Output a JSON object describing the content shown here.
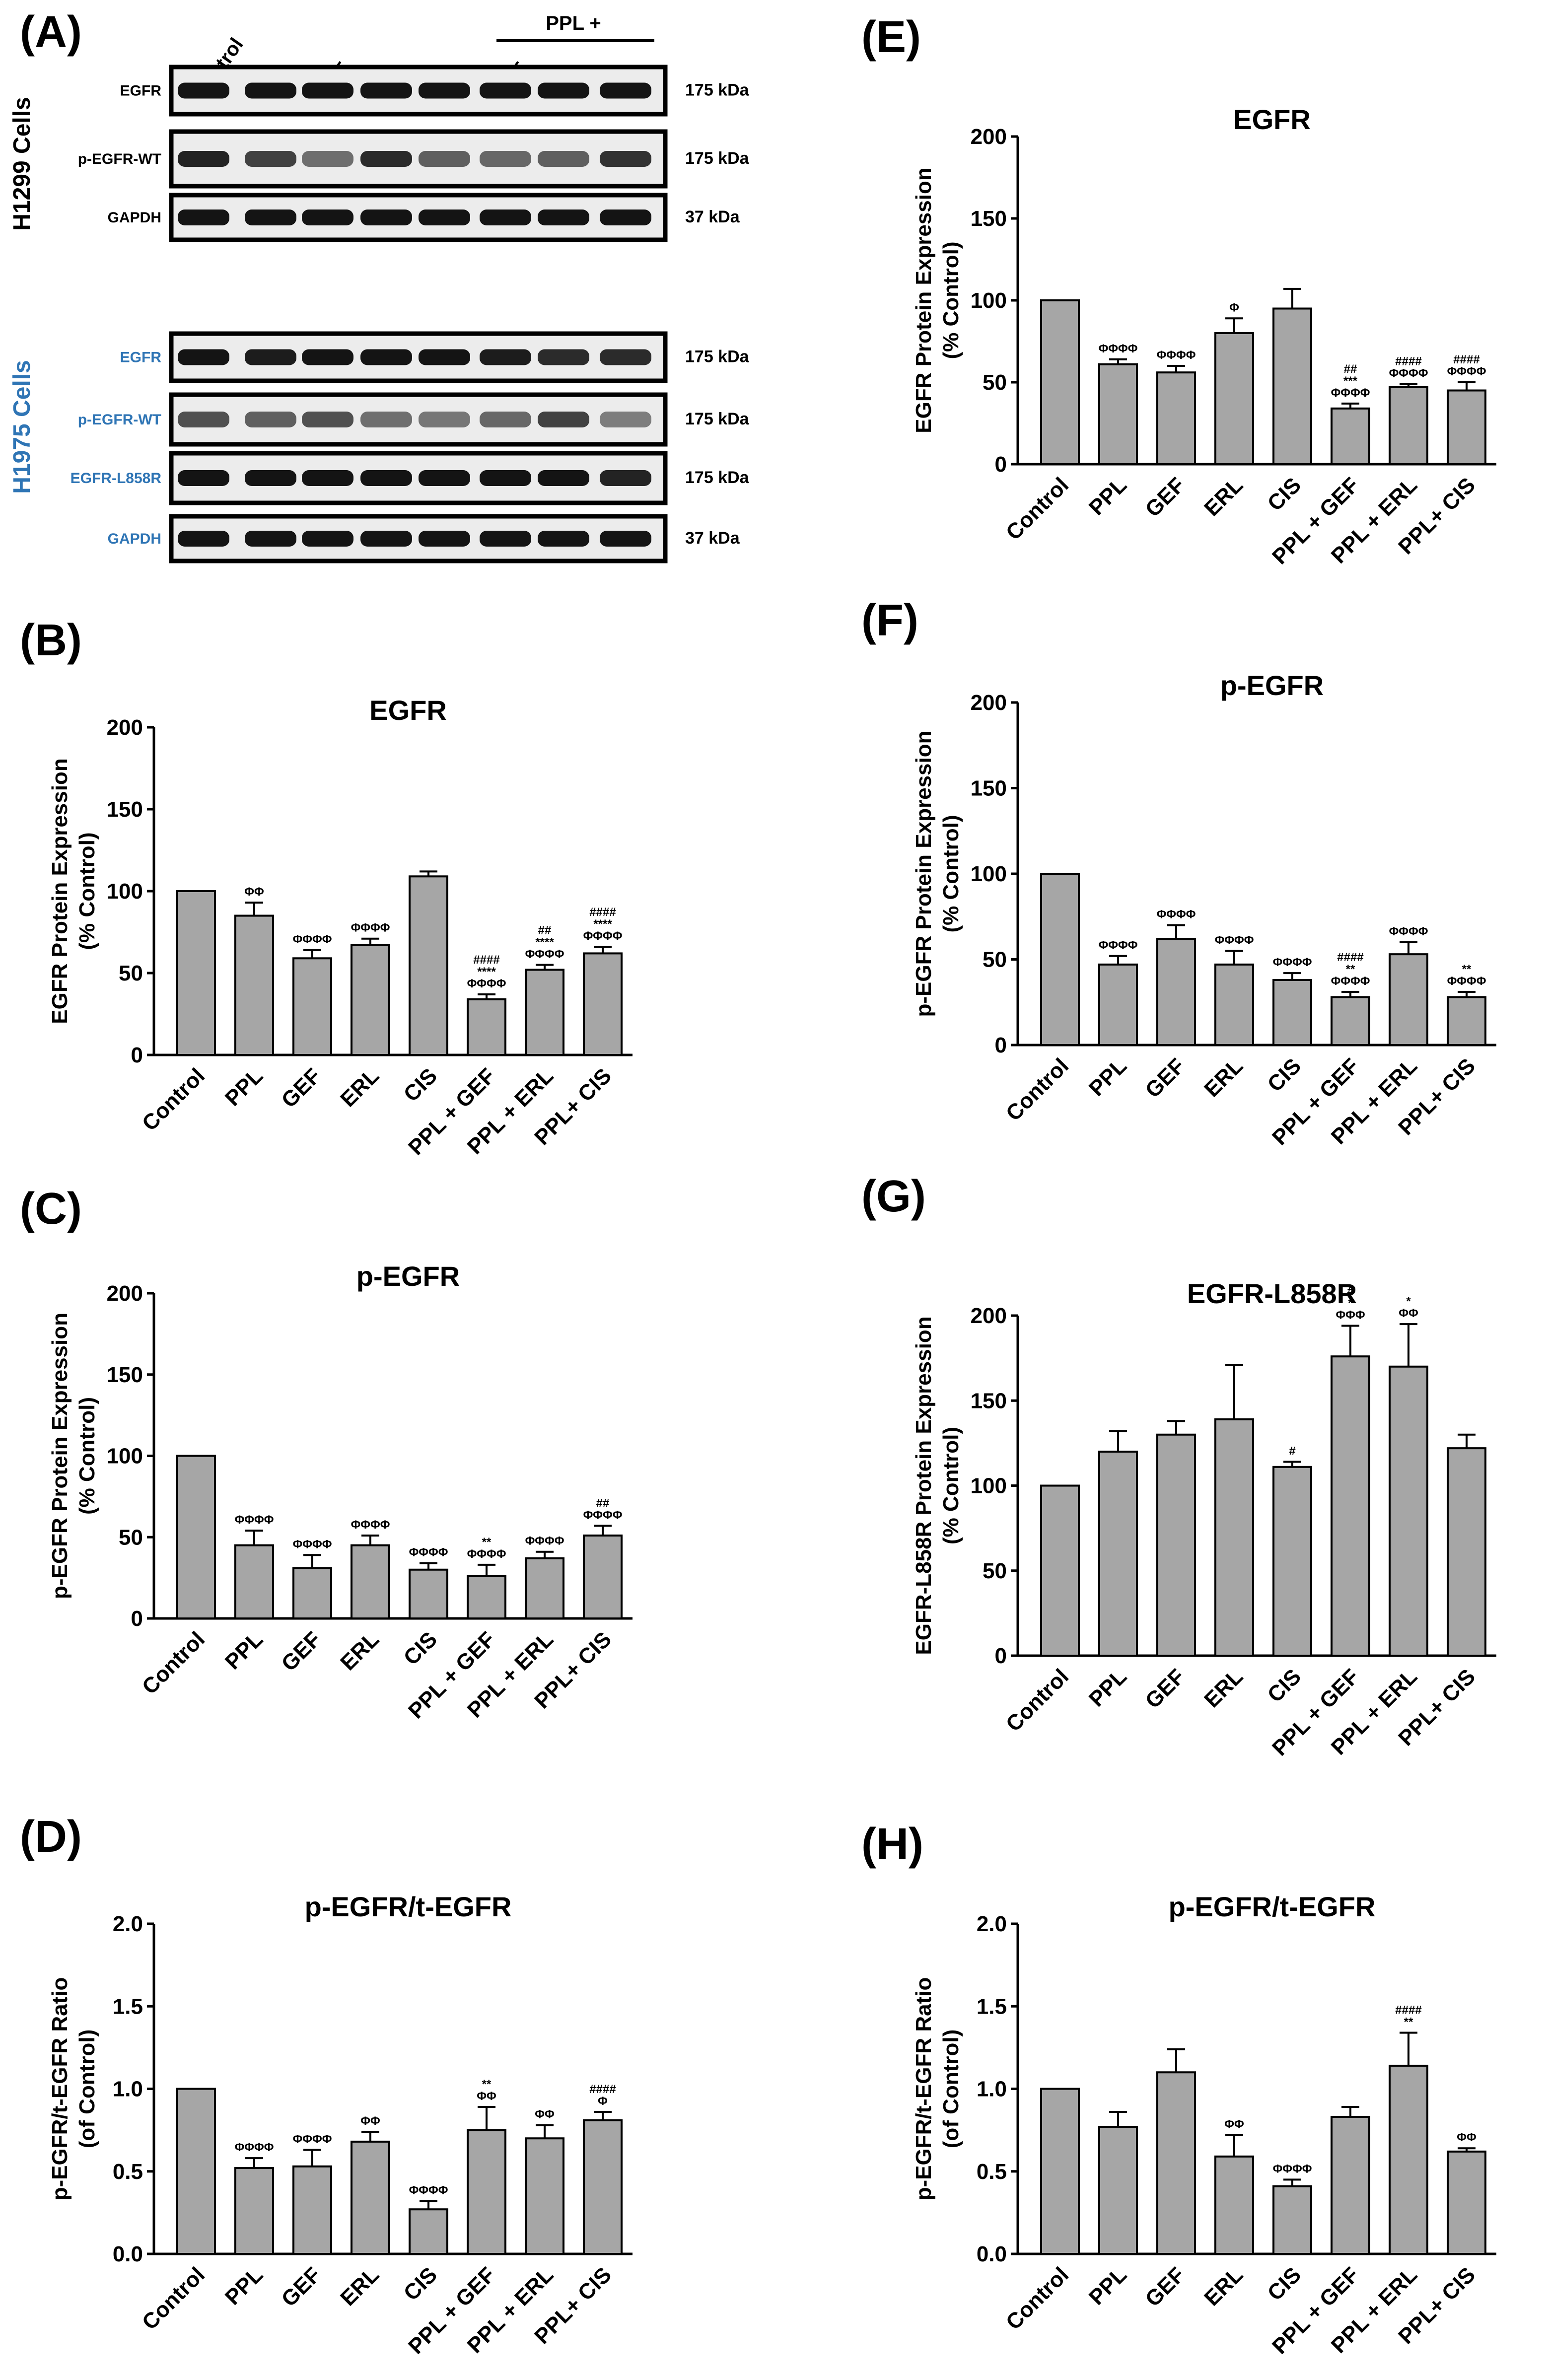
{
  "blot": {
    "panel_label": "(A)",
    "lane_labels": [
      "Control",
      "PPL",
      "GEF",
      "ERL",
      "CIS",
      "GEF",
      "ERL",
      "CIS"
    ],
    "combo_header": "PPL +",
    "groups": [
      {
        "cell_line": "H1299 Cells",
        "color": "#000000",
        "rows": [
          {
            "label": "EGFR",
            "kda": "175 kDa"
          },
          {
            "label": "p-EGFR-WT",
            "kda": "175 kDa"
          },
          {
            "label": "GAPDH",
            "kda": "37 kDa"
          }
        ]
      },
      {
        "cell_line": "H1975 Cells",
        "color": "#2f75b5",
        "rows": [
          {
            "label": "EGFR",
            "kda": "175 kDa"
          },
          {
            "label": "p-EGFR-WT",
            "kda": "175 kDa"
          },
          {
            "label": "EGFR-L858R",
            "kda": "175 kDa"
          },
          {
            "label": "GAPDH",
            "kda": "37 kDa"
          }
        ]
      }
    ]
  },
  "chart_data": [
    {
      "panel": "(B)",
      "type": "bar",
      "title": "EGFR",
      "ylabel": [
        "EGFR Protein Expression",
        "(% Control)"
      ],
      "ylim": [
        0,
        200
      ],
      "yticks": [
        0,
        50,
        100,
        150,
        200
      ],
      "categories": [
        "Control",
        "PPL",
        "GEF",
        "ERL",
        "CIS",
        "PPL + GEF",
        "PPL + ERL",
        "PPL+ CIS"
      ],
      "values": [
        100,
        85,
        59,
        67,
        109,
        34,
        52,
        62
      ],
      "errors": [
        0,
        8,
        5,
        4,
        3,
        3,
        3,
        4
      ],
      "annotations": [
        [],
        [
          "ΦΦ"
        ],
        [
          "ΦΦΦΦ"
        ],
        [
          "ΦΦΦΦ"
        ],
        [],
        [
          "####",
          "****",
          "ΦΦΦΦ"
        ],
        [
          "##",
          "****",
          "ΦΦΦΦ"
        ],
        [
          "####",
          "****",
          "ΦΦΦΦ"
        ]
      ]
    },
    {
      "panel": "(C)",
      "type": "bar",
      "title": "p-EGFR",
      "ylabel": [
        "p-EGFR Protein Expression",
        "(% Control)"
      ],
      "ylim": [
        0,
        200
      ],
      "yticks": [
        0,
        50,
        100,
        150,
        200
      ],
      "categories": [
        "Control",
        "PPL",
        "GEF",
        "ERL",
        "CIS",
        "PPL + GEF",
        "PPL + ERL",
        "PPL+ CIS"
      ],
      "values": [
        100,
        45,
        31,
        45,
        30,
        26,
        37,
        51
      ],
      "errors": [
        0,
        9,
        8,
        6,
        4,
        7,
        4,
        6
      ],
      "annotations": [
        [],
        [
          "ΦΦΦΦ"
        ],
        [
          "ΦΦΦΦ"
        ],
        [
          "ΦΦΦΦ"
        ],
        [
          "ΦΦΦΦ"
        ],
        [
          "**",
          "ΦΦΦΦ"
        ],
        [
          "ΦΦΦΦ"
        ],
        [
          "##",
          "ΦΦΦΦ"
        ]
      ]
    },
    {
      "panel": "(D)",
      "type": "bar",
      "title": "p-EGFR/t-EGFR",
      "ylabel": [
        "p-EGFR/t-EGFR Ratio",
        "(of Control)"
      ],
      "ylim": [
        0,
        2.0
      ],
      "yticks": [
        0.0,
        0.5,
        1.0,
        1.5,
        2.0
      ],
      "categories": [
        "Control",
        "PPL",
        "GEF",
        "ERL",
        "CIS",
        "PPL + GEF",
        "PPL + ERL",
        "PPL+ CIS"
      ],
      "values": [
        1.0,
        0.52,
        0.53,
        0.68,
        0.27,
        0.75,
        0.7,
        0.81
      ],
      "errors": [
        0,
        0.06,
        0.1,
        0.06,
        0.05,
        0.14,
        0.08,
        0.05
      ],
      "annotations": [
        [],
        [
          "ΦΦΦΦ"
        ],
        [
          "ΦΦΦΦ"
        ],
        [
          "ΦΦ"
        ],
        [
          "ΦΦΦΦ"
        ],
        [
          "**",
          "ΦΦ"
        ],
        [
          "ΦΦ"
        ],
        [
          "####",
          "Φ"
        ]
      ]
    },
    {
      "panel": "(E)",
      "type": "bar",
      "title": "EGFR",
      "ylabel": [
        "EGFR Protein Expression",
        "(% Control)"
      ],
      "ylim": [
        0,
        200
      ],
      "yticks": [
        0,
        50,
        100,
        150,
        200
      ],
      "categories": [
        "Control",
        "PPL",
        "GEF",
        "ERL",
        "CIS",
        "PPL + GEF",
        "PPL + ERL",
        "PPL+ CIS"
      ],
      "values": [
        100,
        61,
        56,
        80,
        95,
        34,
        47,
        45
      ],
      "errors": [
        0,
        3,
        4,
        9,
        12,
        3,
        2,
        5
      ],
      "annotations": [
        [],
        [
          "ΦΦΦΦ"
        ],
        [
          "ΦΦΦΦ"
        ],
        [
          "Φ"
        ],
        [],
        [
          "##",
          "***",
          "ΦΦΦΦ"
        ],
        [
          "####",
          "ΦΦΦΦ"
        ],
        [
          "####",
          "ΦΦΦΦ"
        ]
      ]
    },
    {
      "panel": "(F)",
      "type": "bar",
      "title": "p-EGFR",
      "ylabel": [
        "p-EGFR Protein Expression",
        "(% Control)"
      ],
      "ylim": [
        0,
        200
      ],
      "yticks": [
        0,
        50,
        100,
        150,
        200
      ],
      "categories": [
        "Control",
        "PPL",
        "GEF",
        "ERL",
        "CIS",
        "PPL + GEF",
        "PPL + ERL",
        "PPL+ CIS"
      ],
      "values": [
        100,
        47,
        62,
        47,
        38,
        28,
        53,
        28
      ],
      "errors": [
        0,
        5,
        8,
        8,
        4,
        3,
        7,
        3
      ],
      "annotations": [
        [],
        [
          "ΦΦΦΦ"
        ],
        [
          "ΦΦΦΦ"
        ],
        [
          "ΦΦΦΦ"
        ],
        [
          "ΦΦΦΦ"
        ],
        [
          "####",
          "**",
          "ΦΦΦΦ"
        ],
        [
          "ΦΦΦΦ"
        ],
        [
          "**",
          "ΦΦΦΦ"
        ]
      ]
    },
    {
      "panel": "(G)",
      "type": "bar",
      "title": "EGFR-L858R",
      "ylabel": [
        "EGFR-L858R Protein Expression",
        "(% Control)"
      ],
      "ylim": [
        0,
        200
      ],
      "yticks": [
        0,
        50,
        100,
        150,
        200
      ],
      "categories": [
        "Control",
        "PPL",
        "GEF",
        "ERL",
        "CIS",
        "PPL + GEF",
        "PPL + ERL",
        "PPL+ CIS"
      ],
      "values": [
        100,
        120,
        130,
        139,
        111,
        176,
        170,
        122
      ],
      "errors": [
        0,
        12,
        8,
        32,
        3,
        18,
        25,
        8
      ],
      "annotations": [
        [],
        [],
        [],
        [],
        [
          "#"
        ],
        [
          "#",
          "*",
          "ΦΦΦ"
        ],
        [
          "*",
          "ΦΦ"
        ],
        []
      ]
    },
    {
      "panel": "(H)",
      "type": "bar",
      "title": "p-EGFR/t-EGFR",
      "ylabel": [
        "p-EGFR/t-EGFR Ratio",
        "(of Control)"
      ],
      "ylim": [
        0,
        2.0
      ],
      "yticks": [
        0.0,
        0.5,
        1.0,
        1.5,
        2.0
      ],
      "categories": [
        "Control",
        "PPL",
        "GEF",
        "ERL",
        "CIS",
        "PPL + GEF",
        "PPL + ERL",
        "PPL+ CIS"
      ],
      "values": [
        1.0,
        0.77,
        1.1,
        0.59,
        0.41,
        0.83,
        1.14,
        0.62
      ],
      "errors": [
        0,
        0.09,
        0.14,
        0.13,
        0.04,
        0.06,
        0.2,
        0.02
      ],
      "annotations": [
        [],
        [],
        [],
        [
          "ΦΦ"
        ],
        [
          "ΦΦΦΦ"
        ],
        [],
        [
          "####",
          "**"
        ],
        [
          "ΦΦ"
        ]
      ]
    }
  ],
  "colors": {
    "bar_fill": "#a6a6a6",
    "bar_stroke": "#000000",
    "h1975_label": "#2f75b5"
  }
}
